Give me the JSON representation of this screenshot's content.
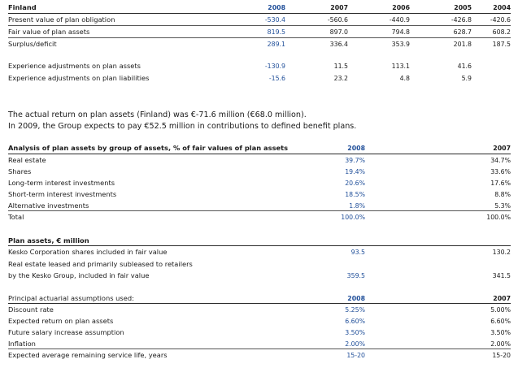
{
  "finland": {
    "title": "Finland",
    "years": [
      "2008",
      "2007",
      "2006",
      "2005",
      "2004"
    ],
    "rows": [
      {
        "label": "Present value of plan obligation",
        "values": [
          "-530.4",
          "-560.6",
          "-440.9",
          "-426.8",
          "-420.6"
        ]
      },
      {
        "label": "Fair value of plan assets",
        "values": [
          "819.5",
          "897.0",
          "794.8",
          "628.7",
          "608.2"
        ]
      },
      {
        "label": "Surplus/deficit",
        "values": [
          "289.1",
          "336.4",
          "353.9",
          "201.8",
          "187.5"
        ]
      }
    ],
    "experience": [
      {
        "label": "Experience adjustments on plan assets",
        "values": [
          "-130.9",
          "11.5",
          "113.1",
          "41.6",
          ""
        ]
      },
      {
        "label": "Experience adjustments on plan liabilities",
        "values": [
          "-15.6",
          "23.2",
          "4.8",
          "5.9",
          ""
        ]
      }
    ]
  },
  "paragraph": {
    "line1": "The actual return on plan assets (Finland) was €-71.6 million (€68.0 million).",
    "line2": "In 2009, the Group expects to pay €52.5 million in contributions to defined benefit plans."
  },
  "analysis": {
    "title": "Analysis of plan assets by group of assets, % of fair values of plan assets",
    "col_2008": "2008",
    "col_2007": "2007",
    "rows": [
      {
        "label": "Real estate",
        "v2008": "39.7%",
        "v2007": "34.7%"
      },
      {
        "label": "Shares",
        "v2008": "19.4%",
        "v2007": "33.6%"
      },
      {
        "label": "Long-term interest investments",
        "v2008": "20.6%",
        "v2007": "17.6%"
      },
      {
        "label": "Short-term interest investments",
        "v2008": "18.5%",
        "v2007": "8.8%"
      },
      {
        "label": "Alternative investments",
        "v2008": "1.8%",
        "v2007": "5.3%"
      }
    ],
    "total": {
      "label": "Total",
      "v2008": "100.0%",
      "v2007": "100.0%"
    }
  },
  "plan_assets": {
    "title": "Plan assets, € million",
    "row1": {
      "label": "Kesko Corporation shares included in fair value",
      "v2008": "93.5",
      "v2007": "130.2"
    },
    "row2": {
      "label1": "Real estate leased and primarily subleased to retailers",
      "label2": "by the Kesko Group, included in fair value",
      "v2008": "359.5",
      "v2007": "341.5"
    }
  },
  "actuarial": {
    "title": "Principal actuarial assumptions used:",
    "col_2008": "2008",
    "col_2007": "2007",
    "rows": [
      {
        "label": "Discount rate",
        "v2008": "5.25%",
        "v2007": "5.00%"
      },
      {
        "label": "Expected return on plan assets",
        "v2008": "6.60%",
        "v2007": "6.60%"
      },
      {
        "label": "Future salary increase assumption",
        "v2008": "3.50%",
        "v2007": "3.50%"
      },
      {
        "label": "Inflation",
        "v2008": "2.00%",
        "v2007": "2.00%"
      },
      {
        "label": "Expected average remaining service life, years",
        "v2008": "15-20",
        "v2007": "15-20"
      }
    ]
  },
  "colors": {
    "accent_blue": "#1f4e99",
    "rule": "#2a2a2a"
  }
}
